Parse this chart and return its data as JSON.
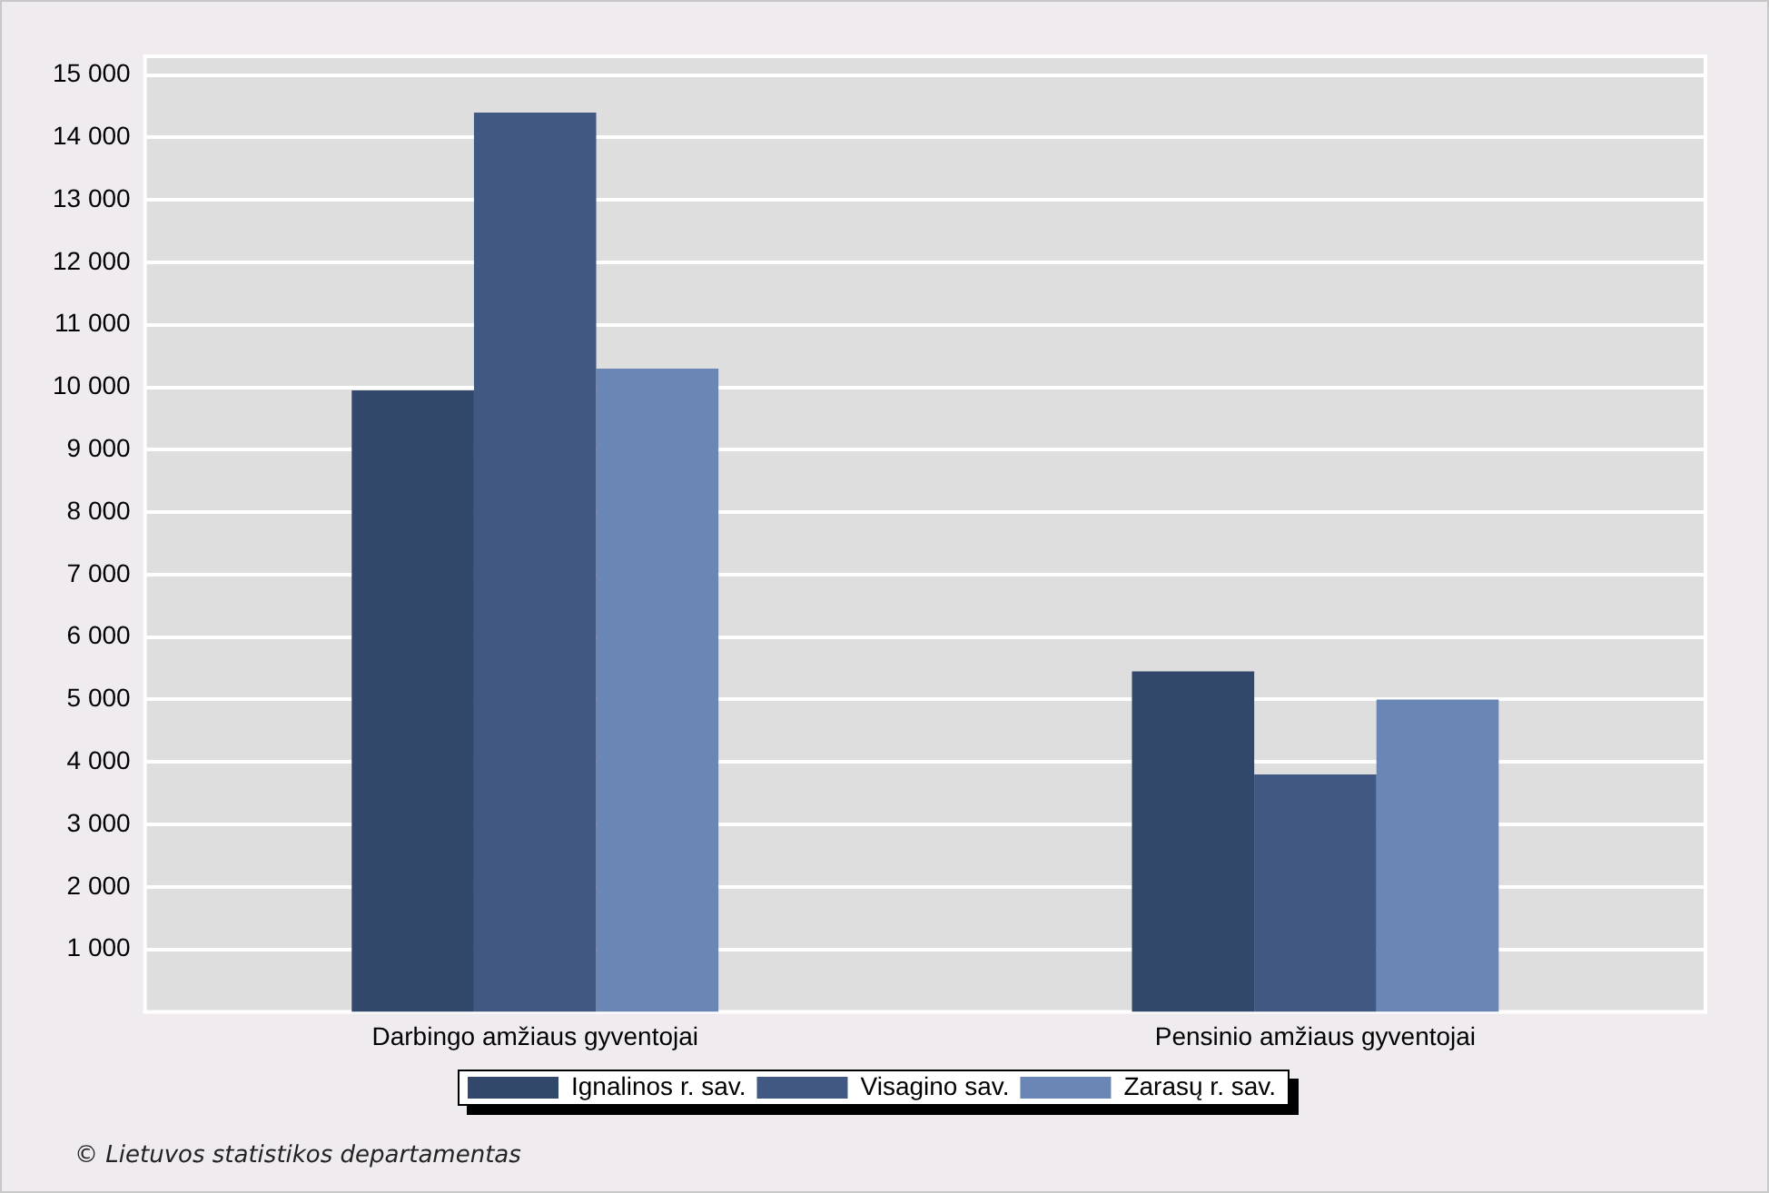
{
  "chart_data": {
    "type": "bar",
    "categories": [
      "Darbingo amžiaus gyventojai",
      "Pensinio amžiaus gyventojai"
    ],
    "series": [
      {
        "name": "Ignalinos r. sav.",
        "color": "#31486b",
        "values": [
          9950,
          5450
        ]
      },
      {
        "name": "Visagino sav.",
        "color": "#415982",
        "values": [
          14400,
          3800
        ]
      },
      {
        "name": "Zarasų r. sav.",
        "color": "#6a86b5",
        "values": [
          10300,
          5000
        ]
      }
    ],
    "ylim": [
      0,
      15300
    ],
    "yticks": [
      {
        "value": 1000,
        "label": "1 000"
      },
      {
        "value": 2000,
        "label": "2 000"
      },
      {
        "value": 3000,
        "label": "3 000"
      },
      {
        "value": 4000,
        "label": "4 000"
      },
      {
        "value": 5000,
        "label": "5 000"
      },
      {
        "value": 6000,
        "label": "6 000"
      },
      {
        "value": 7000,
        "label": "7 000"
      },
      {
        "value": 8000,
        "label": "8 000"
      },
      {
        "value": 9000,
        "label": "9 000"
      },
      {
        "value": 10000,
        "label": "10 000"
      },
      {
        "value": 11000,
        "label": "11 000"
      },
      {
        "value": 12000,
        "label": "12 000"
      },
      {
        "value": 13000,
        "label": "13 000"
      },
      {
        "value": 14000,
        "label": "14 000"
      },
      {
        "value": 15000,
        "label": "15 000"
      }
    ],
    "grid": "y",
    "legend": "bottom",
    "annotations": [
      "© Lietuvos statistikos departamentas"
    ]
  }
}
